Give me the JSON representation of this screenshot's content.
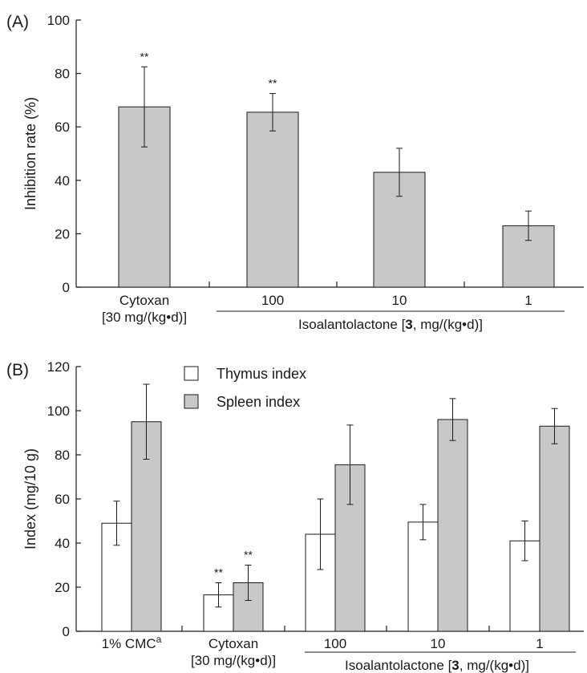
{
  "chart_data": [
    {
      "panel_label": "(A)",
      "type": "bar",
      "ylabel": "Inhibition rate (%)",
      "ylim": [
        0,
        100
      ],
      "yticks": [
        "0",
        "20",
        "40",
        "60",
        "80",
        "100"
      ],
      "categories": [
        "Cytoxan",
        "100",
        "10",
        "1"
      ],
      "category_sublabels": [
        "[30 mg/(kg•d)]",
        "",
        "",
        ""
      ],
      "group_label": {
        "text": "Isoalantolactone [",
        "bold": "3",
        "after": ", mg/(kg•d)]"
      },
      "values": [
        67.5,
        65.5,
        43,
        23
      ],
      "errors": [
        15,
        7,
        9,
        5.5
      ],
      "significance": [
        "**",
        "**",
        "",
        ""
      ],
      "bar_color": "#c8c8c8",
      "grid": false
    },
    {
      "panel_label": "(B)",
      "type": "bar",
      "ylabel": "Index (mg/10 g)",
      "ylim": [
        0,
        120
      ],
      "yticks": [
        "0",
        "20",
        "40",
        "60",
        "80",
        "100",
        "120"
      ],
      "categories": [
        "1% CMC",
        "Cytoxan",
        "100",
        "10",
        "1"
      ],
      "category_superscripts": [
        "a",
        "",
        "",
        "",
        ""
      ],
      "category_sublabels": [
        "",
        "[30 mg/(kg•d)]",
        "",
        "",
        ""
      ],
      "group_label": {
        "text": "Isoalantolactone [",
        "bold": "3",
        "after": ", mg/(kg•d)]"
      },
      "legend": [
        "Thymus index",
        "Spleen index"
      ],
      "legend_position": "top-center",
      "series": [
        {
          "name": "Thymus index",
          "color": "#ffffff",
          "values": [
            49,
            16.5,
            44,
            49.5,
            41
          ],
          "errors": [
            10,
            5.5,
            16,
            8,
            9
          ],
          "significance": [
            "",
            "**",
            "",
            "",
            ""
          ]
        },
        {
          "name": "Spleen index",
          "color": "#c8c8c8",
          "values": [
            95,
            22,
            75.5,
            96,
            93
          ],
          "errors": [
            17,
            8,
            18,
            9.5,
            8
          ],
          "significance": [
            "",
            "**",
            "",
            "",
            ""
          ]
        }
      ],
      "grid": false
    }
  ]
}
